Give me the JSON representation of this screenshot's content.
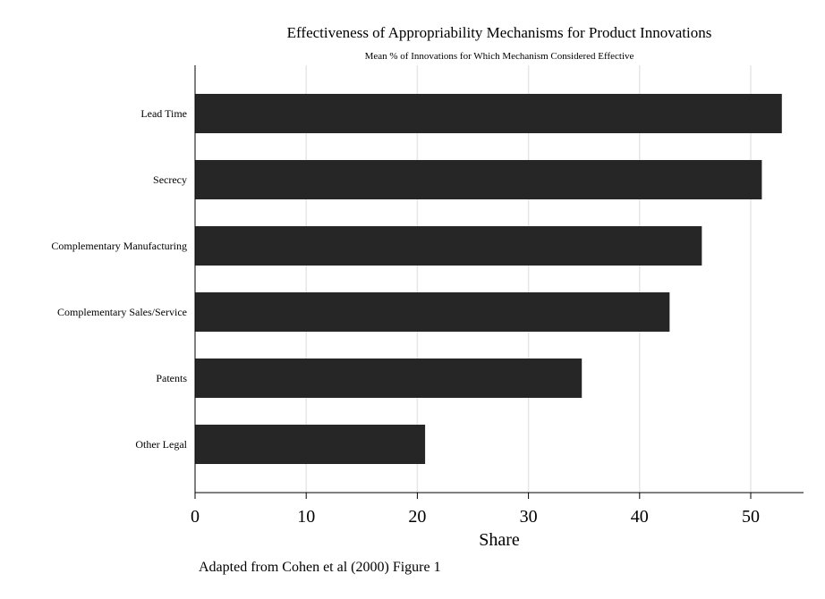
{
  "chart_data": {
    "type": "bar",
    "orientation": "horizontal",
    "title": "Effectiveness of  Appropriability Mechanisms for Product Innovations",
    "subtitle": "Mean % of Innovations for Which Mechanism Considered Effective",
    "xlabel": "Share",
    "ylabel": "",
    "note": "Adapted from Cohen et al (2000) Figure 1",
    "categories": [
      "Lead Time",
      "Secrecy",
      "Complementary Manufacturing",
      "Complementary Sales/Service",
      "Patents",
      "Other Legal"
    ],
    "values": [
      52.8,
      51.0,
      45.6,
      42.7,
      34.8,
      20.7
    ],
    "xlim": [
      0,
      55
    ],
    "xticks": [
      0,
      10,
      20,
      30,
      40,
      50
    ],
    "xtick_labels": [
      "0",
      "10",
      "20",
      "30",
      "40",
      "50"
    ],
    "grid": true,
    "legend": "none",
    "bar_color": "#262626",
    "grid_color": "#e6e6e6"
  }
}
